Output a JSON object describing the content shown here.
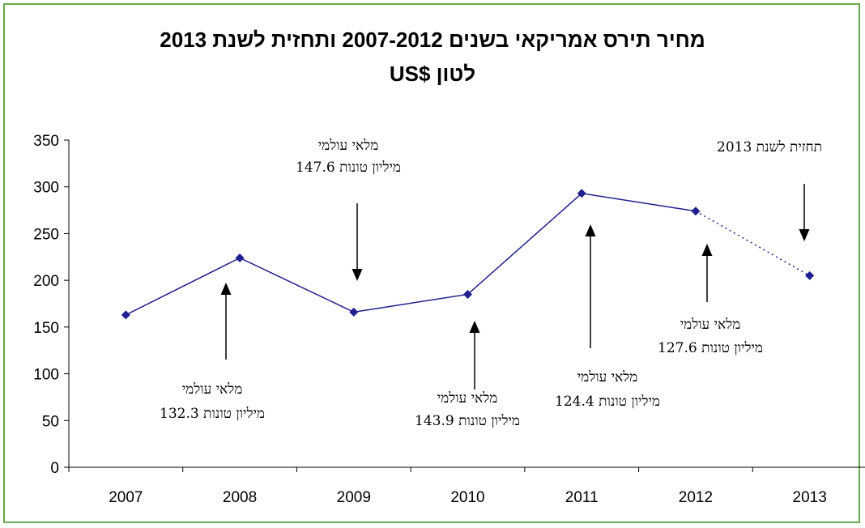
{
  "chart_data": {
    "type": "line",
    "title": [
      "מחיר תירס אמריקאי בשנים 2007-2012 ותחזית לשנת 2013",
      "US$ לטון"
    ],
    "categories": [
      "2007",
      "2008",
      "2009",
      "2010",
      "2011",
      "2012",
      "2013"
    ],
    "series": [
      {
        "values": [
          163,
          224,
          166,
          185,
          293,
          274,
          205
        ],
        "solid_through": "2012",
        "dotted_segment": [
          "2012",
          "2013"
        ]
      }
    ],
    "ylim": [
      0,
      350
    ],
    "yticks": [
      0,
      50,
      100,
      150,
      200,
      250,
      300,
      350
    ],
    "grid": false,
    "legend": "none",
    "colors": {
      "series": "#1f1f8f",
      "marker": "#1f1f8f",
      "frame": "#6aa84f",
      "axis": "#000000"
    },
    "annotations": [
      {
        "lines": [
          "מלאי עולמי",
          "132.3 מיליון טונות"
        ],
        "arrow": "up"
      },
      {
        "lines": [
          "מלאי עולמי",
          "147.6 מיליון טונות"
        ],
        "arrow": "down"
      },
      {
        "lines": [
          "מלאי עולמי",
          "143.9 מיליון טונות"
        ],
        "arrow": "up"
      },
      {
        "lines": [
          "מלאי עולמי",
          "124.4 מיליון טונות"
        ],
        "arrow": "up"
      },
      {
        "lines": [
          "מלאי עולמי",
          "127.6 מיליון טונות"
        ],
        "arrow": "up"
      },
      {
        "lines": [
          "תחזית לשנת 2013"
        ],
        "arrow": "down"
      }
    ]
  }
}
